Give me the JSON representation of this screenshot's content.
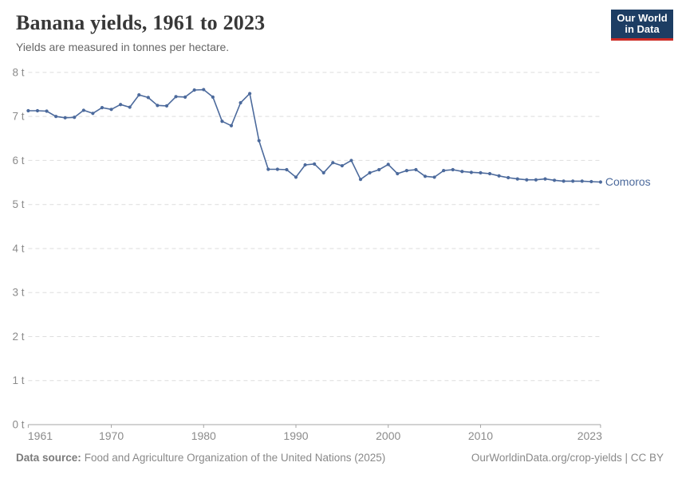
{
  "header": {
    "title": "Banana yields, 1961 to 2023",
    "subtitle": "Yields are measured in tonnes per hectare.",
    "logo": {
      "line1": "Our World",
      "line2": "in Data"
    }
  },
  "chart_data": {
    "type": "line",
    "title": "Banana yields, 1961 to 2023",
    "unit": "tonnes per hectare",
    "xlabel": "",
    "ylabel": "",
    "xlim": [
      1961,
      2023
    ],
    "ylim": [
      0,
      8
    ],
    "grid": "horizontal-dashed",
    "legend_position": "end-of-line-label",
    "x": [
      1961,
      1962,
      1963,
      1964,
      1965,
      1966,
      1967,
      1968,
      1969,
      1970,
      1971,
      1972,
      1973,
      1974,
      1975,
      1976,
      1977,
      1978,
      1979,
      1980,
      1981,
      1982,
      1983,
      1984,
      1985,
      1986,
      1987,
      1988,
      1989,
      1990,
      1991,
      1992,
      1993,
      1994,
      1995,
      1996,
      1997,
      1998,
      1999,
      2000,
      2001,
      2002,
      2003,
      2004,
      2005,
      2006,
      2007,
      2008,
      2009,
      2010,
      2011,
      2012,
      2013,
      2014,
      2015,
      2016,
      2017,
      2018,
      2019,
      2020,
      2021,
      2022,
      2023
    ],
    "series": [
      {
        "name": "Comoros",
        "color": "#4C6A9C",
        "values": [
          7.13,
          7.13,
          7.12,
          7.0,
          6.97,
          6.98,
          7.14,
          7.07,
          7.2,
          7.16,
          7.27,
          7.21,
          7.49,
          7.43,
          7.25,
          7.24,
          7.45,
          7.44,
          7.6,
          7.61,
          7.44,
          6.89,
          6.79,
          7.31,
          7.52,
          6.45,
          5.8,
          5.8,
          5.79,
          5.62,
          5.9,
          5.92,
          5.72,
          5.95,
          5.88,
          6.0,
          5.57,
          5.72,
          5.79,
          5.91,
          5.7,
          5.77,
          5.79,
          5.64,
          5.62,
          5.77,
          5.79,
          5.75,
          5.73,
          5.72,
          5.7,
          5.65,
          5.61,
          5.58,
          5.56,
          5.56,
          5.58,
          5.55,
          5.53,
          5.53,
          5.53,
          5.52,
          5.51
        ]
      }
    ],
    "x_tick_values": [
      1961,
      1970,
      1980,
      1990,
      2000,
      2010,
      2023
    ],
    "x_tick_labels": [
      "1961",
      "1970",
      "1980",
      "1990",
      "2000",
      "2010",
      "2023"
    ],
    "y_tick_values": [
      0,
      1,
      2,
      3,
      4,
      5,
      6,
      7,
      8
    ],
    "y_tick_labels": [
      "0 t",
      "1 t",
      "2 t",
      "3 t",
      "4 t",
      "5 t",
      "6 t",
      "7 t",
      "8 t"
    ]
  },
  "footer": {
    "source_label": "Data source:",
    "source_text": "Food and Agriculture Organization of the United Nations (2025)",
    "link_text": "OurWorldinData.org/crop-yields | CC BY"
  },
  "colors": {
    "line": "#4C6A9C",
    "entity_label": "#4C6A9C",
    "gridline": "#dedede",
    "axis": "#a5a5a5",
    "tick_label": "#8b8b8b",
    "title": "#383838",
    "subtitle": "#666666",
    "footer": "#898989",
    "logo_bg": "#1d3d63",
    "logo_stripe": "#cc2a24"
  }
}
